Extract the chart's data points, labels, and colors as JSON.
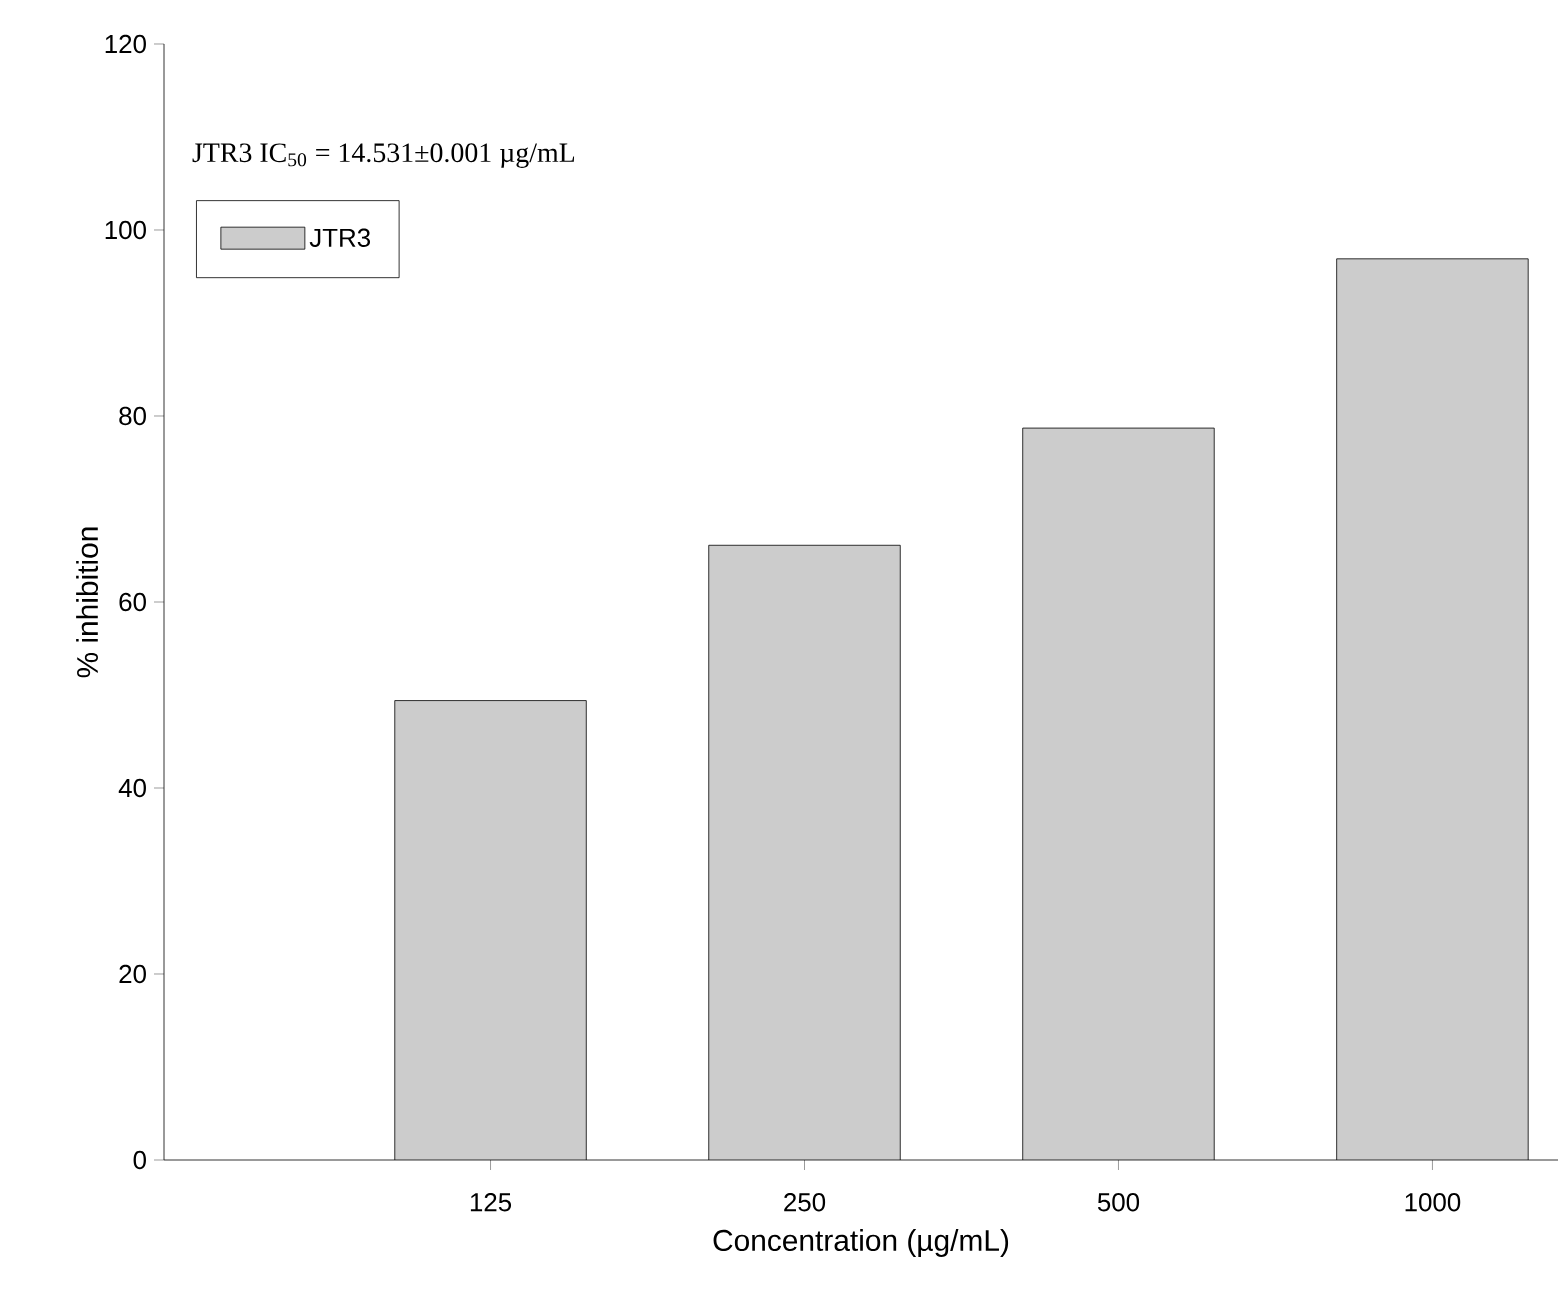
{
  "chart_data": {
    "type": "bar",
    "xlabel": "Concentration (µg/mL)",
    "ylabel": "% inhibition",
    "annotations": [
      "JTR3 IC$_{50}$ = 14.531±0.001 µg/mL"
    ],
    "categories": [
      "125",
      "250",
      "500",
      "1000"
    ],
    "series": [
      {
        "name": "JTR3",
        "color": "#cccccc",
        "values": [
          49.4,
          66.1,
          78.7,
          96.9
        ]
      }
    ],
    "ylim": [
      0,
      120
    ],
    "yticks": [
      0,
      20,
      40,
      60,
      80,
      100,
      120
    ],
    "grid": false,
    "legend": "top left"
  }
}
